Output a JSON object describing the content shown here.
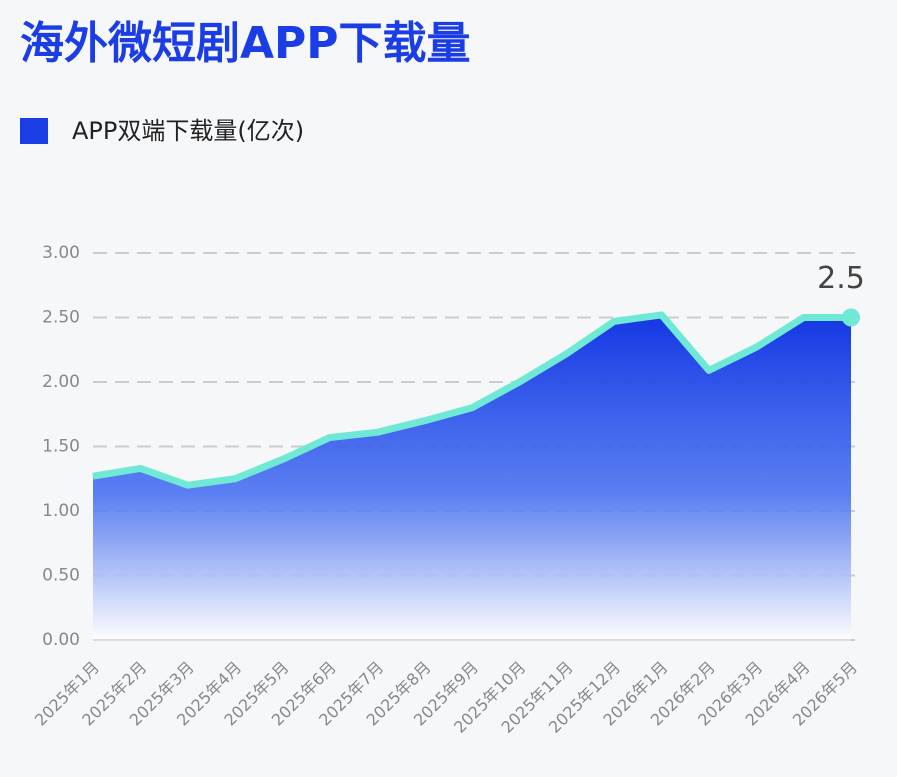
{
  "chart_data": {
    "type": "area",
    "title": "海外微短剧APP下载量",
    "categories": [
      "2025年1月",
      "2025年2月",
      "2025年3月",
      "2025年4月",
      "2025年5月",
      "2025年6月",
      "2025年7月",
      "2025年8月",
      "2025年9月",
      "2025年10月",
      "2025年11月",
      "2025年12月",
      "2026年1月",
      "2026年2月",
      "2026年3月",
      "2026年4月",
      "2026年5月"
    ],
    "series": [
      {
        "name": "APP双端下载量(亿次)",
        "color": "#1a3de6",
        "line_color": "#6fe9d6",
        "values": [
          1.27,
          1.33,
          1.2,
          1.25,
          1.4,
          1.57,
          1.61,
          1.7,
          1.8,
          2.0,
          2.22,
          2.47,
          2.52,
          2.09,
          2.27,
          2.5,
          2.5
        ]
      }
    ],
    "ylim": [
      0,
      3
    ],
    "yticks": [
      {
        "value": 0,
        "label": "0.00"
      },
      {
        "value": 0.5,
        "label": "0.50"
      },
      {
        "value": 1,
        "label": "1.00"
      },
      {
        "value": 1.5,
        "label": "1.50"
      },
      {
        "value": 2,
        "label": "2.00"
      },
      {
        "value": 2.5,
        "label": "2.50"
      },
      {
        "value": 3,
        "label": "3.00"
      }
    ],
    "grid": true
  }
}
